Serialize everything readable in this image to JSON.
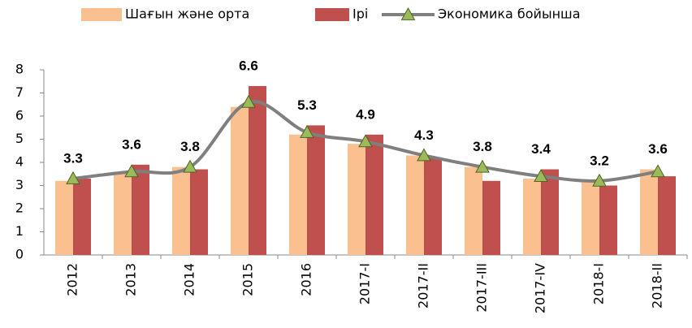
{
  "chart_data": {
    "type": "bar",
    "categories": [
      "2012",
      "2013",
      "2014",
      "2015",
      "2016",
      "2017-I",
      "2017-II",
      "2017-III",
      "2017-IV",
      "2018-I",
      "2018-II"
    ],
    "series": [
      {
        "name": "Шағын және орта",
        "color": "#fac090",
        "values": [
          3.2,
          3.6,
          3.8,
          6.4,
          5.2,
          4.8,
          4.3,
          3.8,
          3.3,
          3.2,
          3.7
        ]
      },
      {
        "name": "Ірі",
        "color": "#c0504d",
        "values": [
          3.3,
          3.9,
          3.7,
          7.3,
          5.6,
          5.2,
          4.2,
          3.2,
          3.7,
          3.0,
          3.4
        ]
      },
      {
        "name": "Экономика бойынша",
        "type": "line",
        "color": "#7f7f7f",
        "marker_color": "#9bbb59",
        "values": [
          3.3,
          3.6,
          3.8,
          6.6,
          5.3,
          4.9,
          4.3,
          3.8,
          3.4,
          3.2,
          3.6
        ]
      }
    ],
    "ylim": [
      0,
      8
    ],
    "yticks": [
      0,
      1,
      2,
      3,
      4,
      5,
      6,
      7,
      8
    ],
    "grid": false,
    "legend": "top"
  }
}
